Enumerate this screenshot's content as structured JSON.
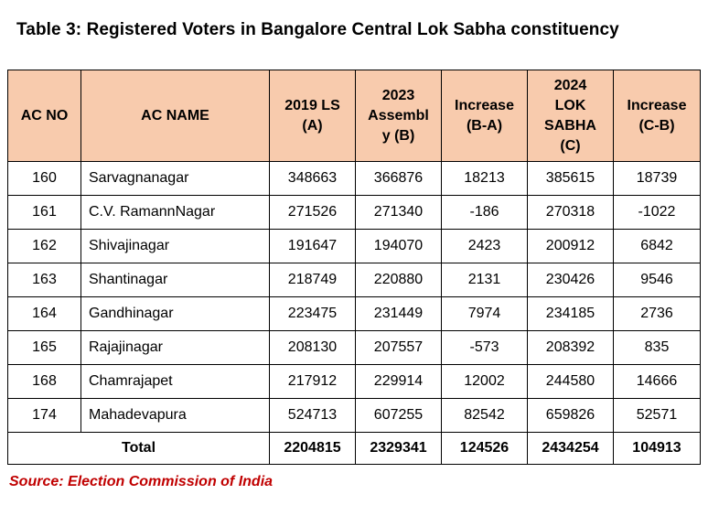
{
  "title": "Table 3: Registered Voters in Bangalore Central Lok Sabha constituency",
  "table": {
    "headers": [
      [
        "AC NO"
      ],
      [
        "AC NAME"
      ],
      [
        "2019 LS",
        "(A)"
      ],
      [
        "2023",
        "Assembl",
        "y (B)"
      ],
      [
        "Increase",
        "(B-A)"
      ],
      [
        "2024",
        "LOK",
        "SABHA",
        "(C)"
      ],
      [
        "Increase",
        "(C-B)"
      ]
    ],
    "rows": [
      [
        "160",
        "Sarvagnanagar",
        "348663",
        "366876",
        "18213",
        "385615",
        "18739"
      ],
      [
        "161",
        "C.V. RamannNagar",
        "271526",
        "271340",
        "-186",
        "270318",
        "-1022"
      ],
      [
        "162",
        "Shivajinagar",
        "191647",
        "194070",
        "2423",
        "200912",
        "6842"
      ],
      [
        "163",
        "Shantinagar",
        "218749",
        "220880",
        "2131",
        "230426",
        "9546"
      ],
      [
        "164",
        "Gandhinagar",
        "223475",
        "231449",
        "7974",
        "234185",
        "2736"
      ],
      [
        "165",
        "Rajajinagar",
        "208130",
        "207557",
        "-573",
        "208392",
        "835"
      ],
      [
        "168",
        "Chamrajapet",
        "217912",
        "229914",
        "12002",
        "244580",
        "14666"
      ],
      [
        "174",
        "Mahadevapura",
        "524713",
        "607255",
        "82542",
        "659826",
        "52571"
      ]
    ],
    "total": {
      "label": "Total",
      "values": [
        "2204815",
        "2329341",
        "124526",
        "2434254",
        "104913"
      ]
    }
  },
  "source": "Source: Election Commission of India",
  "colors": {
    "header_bg": "#f8cbad",
    "source_text": "#c00000"
  }
}
